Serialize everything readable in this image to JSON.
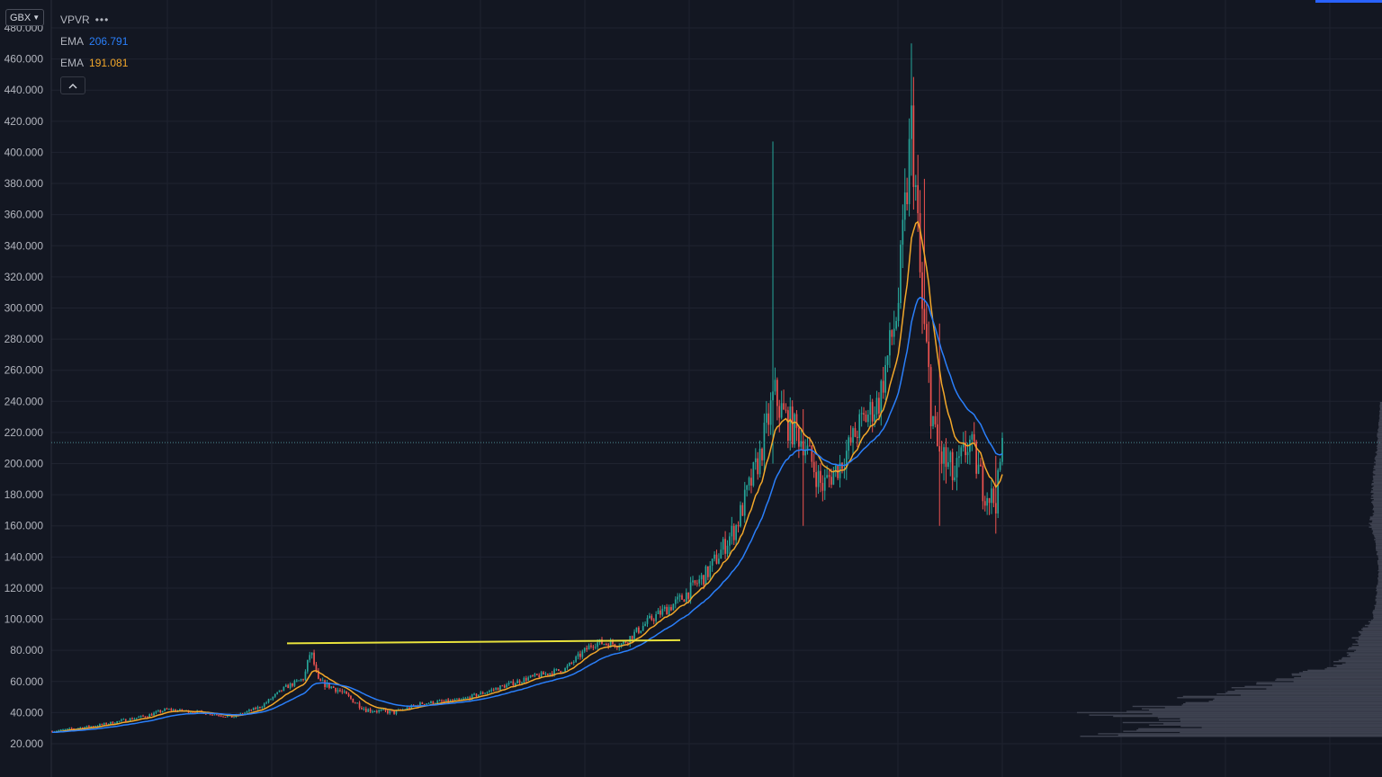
{
  "currency": {
    "label": "GBX"
  },
  "legend": {
    "indicator": "VPVR",
    "menu_dots": "•••",
    "ema1": {
      "label": "EMA",
      "value": "206.791",
      "color": "#2a7ffa"
    },
    "ema2": {
      "label": "EMA",
      "value": "191.081",
      "color": "#f2a72a"
    }
  },
  "colors": {
    "background": "#131722",
    "grid": "#1f2330",
    "up": "#26a69a",
    "down": "#ef5350",
    "ema_fast": "#f2a72a",
    "ema_slow": "#2a7ffa",
    "trendline": "#e8e23c",
    "price_line": "#4d8a93",
    "volume_profile": "#3e4250"
  },
  "chart_data": {
    "type": "candlestick",
    "y_axis": {
      "min": 20,
      "max": 480,
      "ticks": [
        "20.000",
        "40.000",
        "60.000",
        "80.000",
        "100.000",
        "120.000",
        "140.000",
        "160.000",
        "180.000",
        "200.000",
        "220.000",
        "240.000",
        "260.000",
        "280.000",
        "300.000",
        "320.000",
        "340.000",
        "360.000",
        "380.000",
        "400.000",
        "420.000",
        "440.000",
        "460.000",
        "480.000"
      ]
    },
    "current_price": 213.5,
    "trendline": {
      "start": [
        0,
        84.5
      ],
      "end": [
        1,
        86.5
      ]
    },
    "price_path": [
      [
        0,
        28,
        0.6
      ],
      [
        0.05,
        32,
        0.8
      ],
      [
        0.1,
        38,
        1.0
      ],
      [
        0.12,
        42,
        1.0
      ],
      [
        0.16,
        40,
        0.8
      ],
      [
        0.19,
        37,
        0.8
      ],
      [
        0.22,
        44,
        1.0
      ],
      [
        0.245,
        56,
        1.4
      ],
      [
        0.265,
        62,
        1.6
      ],
      [
        0.272,
        80,
        3.0
      ],
      [
        0.28,
        60,
        2.0
      ],
      [
        0.3,
        55,
        2.0
      ],
      [
        0.33,
        42,
        1.5
      ],
      [
        0.36,
        40,
        1.2
      ],
      [
        0.39,
        46,
        1.2
      ],
      [
        0.43,
        48,
        1.2
      ],
      [
        0.47,
        56,
        1.5
      ],
      [
        0.5,
        62,
        1.6
      ],
      [
        0.54,
        68,
        1.8
      ],
      [
        0.57,
        85,
        2.5
      ],
      [
        0.6,
        84,
        2.5
      ],
      [
        0.63,
        100,
        3.0
      ],
      [
        0.66,
        112,
        4.0
      ],
      [
        0.69,
        130,
        5.0
      ],
      [
        0.72,
        160,
        7.0
      ],
      [
        0.745,
        205,
        9.0
      ],
      [
        0.76,
        245,
        12.0
      ],
      [
        0.77,
        230,
        12.0
      ],
      [
        0.79,
        215,
        9.0
      ],
      [
        0.81,
        185,
        8.0
      ],
      [
        0.83,
        200,
        8.0
      ],
      [
        0.85,
        225,
        9.0
      ],
      [
        0.87,
        240,
        10.0
      ],
      [
        0.89,
        300,
        14.0
      ],
      [
        0.905,
        420,
        25.0
      ],
      [
        0.915,
        300,
        20.0
      ],
      [
        0.93,
        210,
        14.0
      ],
      [
        0.95,
        190,
        12.0
      ],
      [
        0.965,
        215,
        10.0
      ],
      [
        0.98,
        185,
        10.0
      ],
      [
        0.993,
        175,
        8.0
      ],
      [
        1,
        212,
        6.0
      ]
    ],
    "spikes": [
      {
        "at": 0.758,
        "high": 407,
        "low": 200
      },
      {
        "at": 0.905,
        "high": 470,
        "low": 385
      },
      {
        "at": 0.918,
        "high": 383,
        "low": 290
      },
      {
        "at": 0.935,
        "high": 290,
        "low": 160
      },
      {
        "at": 0.79,
        "high": 235,
        "low": 160
      },
      {
        "at": 0.993,
        "high": 205,
        "low": 155
      }
    ]
  }
}
